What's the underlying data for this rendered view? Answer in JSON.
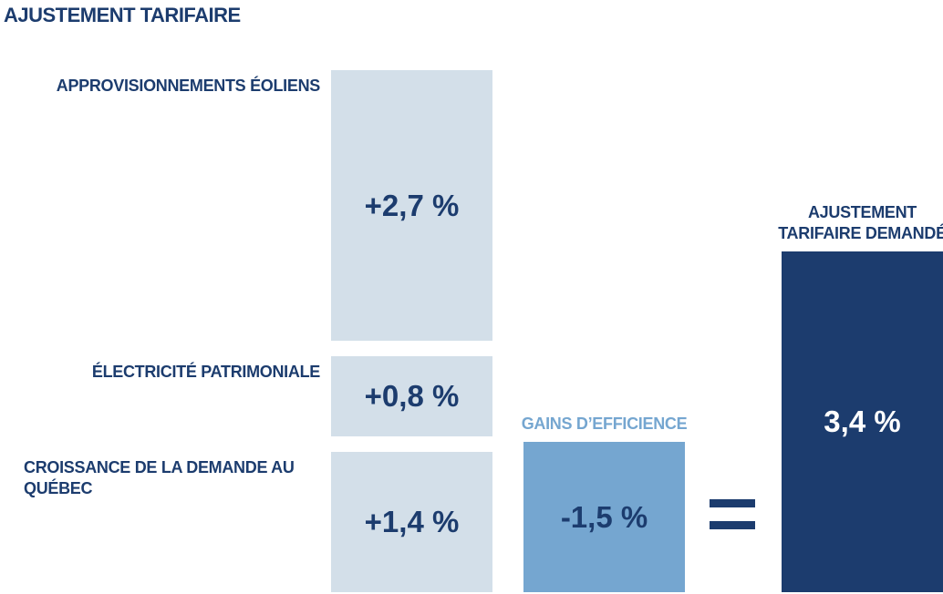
{
  "chart_data": {
    "type": "waterfall",
    "title": "AJUSTEMENT TARIFAIRE",
    "categories": [
      "APPROVISIONNEMENTS ÉOLIENS",
      "ÉLECTRICITÉ PATRIMONIALE",
      "CROISSANCE DE LA DEMANDE AU QUÉBEC",
      "GAINS D’EFFICIENCE",
      "AJUSTEMENT TARIFAIRE DEMANDÉ"
    ],
    "values": [
      2.7,
      0.8,
      1.4,
      -1.5,
      3.4
    ],
    "value_labels": [
      "+2,7 %",
      "+0,8 %",
      "+1,4 %",
      "-1,5 %",
      "3,4 %"
    ],
    "measure": [
      "relative",
      "relative",
      "relative",
      "relative",
      "total"
    ],
    "colors": [
      "#d3dfe9",
      "#d3dfe9",
      "#d3dfe9",
      "#75a6d0",
      "#1c3c6e"
    ]
  }
}
